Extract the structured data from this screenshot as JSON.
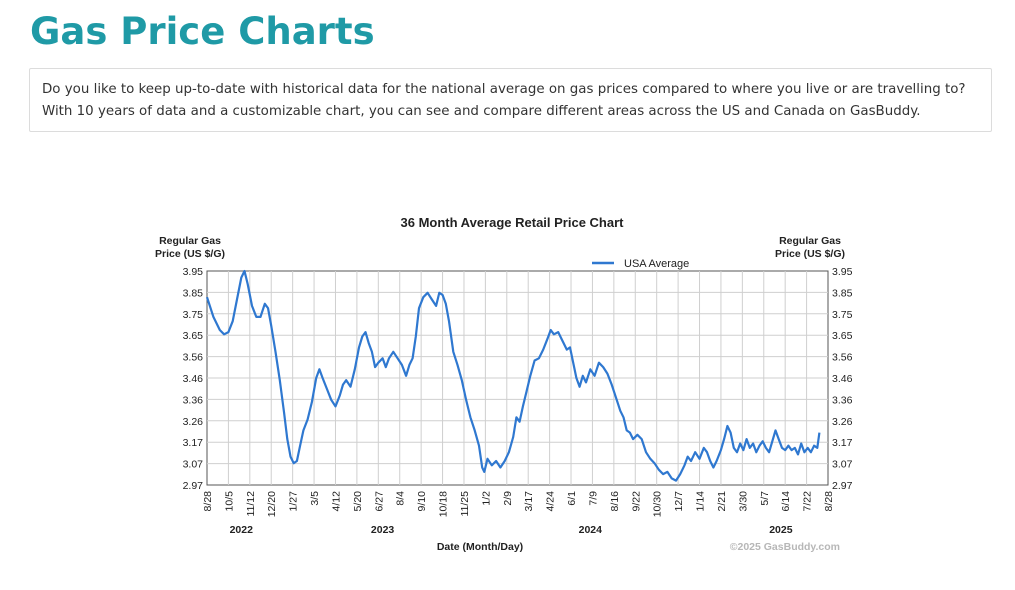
{
  "page": {
    "title": "Gas Price Charts",
    "intro": "Do you like to keep up-to-date with historical data for the national average on gas prices compared to where you live or are travelling to? With 10 years of data and a customizable chart, you can see and compare different areas across the US and Canada on GasBuddy."
  },
  "chart_data": {
    "type": "line",
    "title": "36 Month Average Retail Price Chart",
    "ylabel_left": [
      "Regular Gas",
      "Price (US $/G)"
    ],
    "ylabel_right": [
      "Regular Gas",
      "Price (US $/G)"
    ],
    "xlabel": "Date (Month/Day)",
    "copyright": "©2025 GasBuddy.com",
    "legend": "top-center",
    "grid": true,
    "ylim": [
      2.97,
      3.95
    ],
    "yticks": [
      "3.95",
      "3.85",
      "3.75",
      "3.65",
      "3.56",
      "3.46",
      "3.36",
      "3.26",
      "3.17",
      "3.07",
      "2.97"
    ],
    "xticks": [
      "8/28",
      "10/5",
      "11/12",
      "12/20",
      "1/27",
      "3/5",
      "4/12",
      "5/20",
      "6/27",
      "8/4",
      "9/10",
      "10/18",
      "11/25",
      "1/2",
      "2/9",
      "3/17",
      "4/24",
      "6/1",
      "7/9",
      "8/16",
      "9/22",
      "10/30",
      "12/7",
      "1/14",
      "2/21",
      "3/30",
      "5/7",
      "6/14",
      "7/22",
      "8/28"
    ],
    "years": [
      {
        "label": "2022",
        "at": 1.6
      },
      {
        "label": "2023",
        "at": 8.2
      },
      {
        "label": "2024",
        "at": 17.9
      },
      {
        "label": "2025",
        "at": 26.8
      }
    ],
    "series": [
      {
        "name": "USA Average",
        "color": "#2f78d0",
        "points": [
          [
            0.0,
            3.83
          ],
          [
            0.3,
            3.74
          ],
          [
            0.6,
            3.68
          ],
          [
            0.8,
            3.66
          ],
          [
            1.0,
            3.67
          ],
          [
            1.2,
            3.72
          ],
          [
            1.4,
            3.82
          ],
          [
            1.6,
            3.92
          ],
          [
            1.75,
            3.95
          ],
          [
            1.9,
            3.89
          ],
          [
            2.1,
            3.79
          ],
          [
            2.3,
            3.74
          ],
          [
            2.5,
            3.74
          ],
          [
            2.7,
            3.8
          ],
          [
            2.85,
            3.78
          ],
          [
            3.0,
            3.7
          ],
          [
            3.2,
            3.58
          ],
          [
            3.4,
            3.45
          ],
          [
            3.6,
            3.3
          ],
          [
            3.75,
            3.18
          ],
          [
            3.9,
            3.1
          ],
          [
            4.05,
            3.07
          ],
          [
            4.2,
            3.08
          ],
          [
            4.35,
            3.15
          ],
          [
            4.5,
            3.22
          ],
          [
            4.7,
            3.27
          ],
          [
            4.9,
            3.35
          ],
          [
            5.1,
            3.46
          ],
          [
            5.25,
            3.5
          ],
          [
            5.4,
            3.46
          ],
          [
            5.6,
            3.41
          ],
          [
            5.8,
            3.36
          ],
          [
            6.0,
            3.33
          ],
          [
            6.2,
            3.38
          ],
          [
            6.35,
            3.43
          ],
          [
            6.5,
            3.45
          ],
          [
            6.7,
            3.42
          ],
          [
            6.9,
            3.5
          ],
          [
            7.1,
            3.6
          ],
          [
            7.25,
            3.65
          ],
          [
            7.4,
            3.67
          ],
          [
            7.55,
            3.62
          ],
          [
            7.7,
            3.58
          ],
          [
            7.85,
            3.51
          ],
          [
            8.0,
            3.53
          ],
          [
            8.2,
            3.55
          ],
          [
            8.35,
            3.51
          ],
          [
            8.5,
            3.55
          ],
          [
            8.7,
            3.58
          ],
          [
            8.9,
            3.55
          ],
          [
            9.1,
            3.52
          ],
          [
            9.3,
            3.47
          ],
          [
            9.45,
            3.52
          ],
          [
            9.6,
            3.55
          ],
          [
            9.75,
            3.65
          ],
          [
            9.9,
            3.78
          ],
          [
            10.1,
            3.83
          ],
          [
            10.3,
            3.85
          ],
          [
            10.5,
            3.82
          ],
          [
            10.7,
            3.79
          ],
          [
            10.85,
            3.85
          ],
          [
            11.0,
            3.84
          ],
          [
            11.15,
            3.8
          ],
          [
            11.3,
            3.72
          ],
          [
            11.5,
            3.58
          ],
          [
            11.7,
            3.52
          ],
          [
            11.9,
            3.45
          ],
          [
            12.1,
            3.36
          ],
          [
            12.3,
            3.28
          ],
          [
            12.5,
            3.22
          ],
          [
            12.7,
            3.15
          ],
          [
            12.85,
            3.05
          ],
          [
            12.95,
            3.03
          ],
          [
            13.1,
            3.09
          ],
          [
            13.3,
            3.06
          ],
          [
            13.5,
            3.08
          ],
          [
            13.7,
            3.05
          ],
          [
            13.9,
            3.08
          ],
          [
            14.1,
            3.12
          ],
          [
            14.3,
            3.19
          ],
          [
            14.45,
            3.28
          ],
          [
            14.6,
            3.26
          ],
          [
            14.75,
            3.33
          ],
          [
            14.9,
            3.39
          ],
          [
            15.1,
            3.47
          ],
          [
            15.3,
            3.54
          ],
          [
            15.5,
            3.55
          ],
          [
            15.7,
            3.59
          ],
          [
            15.9,
            3.64
          ],
          [
            16.05,
            3.68
          ],
          [
            16.2,
            3.66
          ],
          [
            16.4,
            3.67
          ],
          [
            16.6,
            3.63
          ],
          [
            16.8,
            3.59
          ],
          [
            16.95,
            3.6
          ],
          [
            17.1,
            3.53
          ],
          [
            17.25,
            3.46
          ],
          [
            17.4,
            3.42
          ],
          [
            17.55,
            3.47
          ],
          [
            17.7,
            3.44
          ],
          [
            17.9,
            3.5
          ],
          [
            18.1,
            3.47
          ],
          [
            18.3,
            3.53
          ],
          [
            18.5,
            3.51
          ],
          [
            18.7,
            3.48
          ],
          [
            18.9,
            3.43
          ],
          [
            19.1,
            3.37
          ],
          [
            19.3,
            3.31
          ],
          [
            19.45,
            3.28
          ],
          [
            19.6,
            3.22
          ],
          [
            19.75,
            3.21
          ],
          [
            19.9,
            3.18
          ],
          [
            20.1,
            3.2
          ],
          [
            20.3,
            3.18
          ],
          [
            20.5,
            3.12
          ],
          [
            20.7,
            3.09
          ],
          [
            20.9,
            3.07
          ],
          [
            21.1,
            3.04
          ],
          [
            21.3,
            3.02
          ],
          [
            21.5,
            3.03
          ],
          [
            21.7,
            3.0
          ],
          [
            21.9,
            2.99
          ],
          [
            22.1,
            3.02
          ],
          [
            22.3,
            3.06
          ],
          [
            22.45,
            3.1
          ],
          [
            22.6,
            3.08
          ],
          [
            22.8,
            3.12
          ],
          [
            23.0,
            3.09
          ],
          [
            23.2,
            3.14
          ],
          [
            23.35,
            3.12
          ],
          [
            23.5,
            3.08
          ],
          [
            23.65,
            3.05
          ],
          [
            23.8,
            3.08
          ],
          [
            24.0,
            3.13
          ],
          [
            24.15,
            3.18
          ],
          [
            24.3,
            3.24
          ],
          [
            24.45,
            3.21
          ],
          [
            24.6,
            3.14
          ],
          [
            24.75,
            3.12
          ],
          [
            24.9,
            3.16
          ],
          [
            25.05,
            3.13
          ],
          [
            25.2,
            3.18
          ],
          [
            25.35,
            3.14
          ],
          [
            25.5,
            3.16
          ],
          [
            25.65,
            3.12
          ],
          [
            25.8,
            3.15
          ],
          [
            25.95,
            3.17
          ],
          [
            26.1,
            3.14
          ],
          [
            26.25,
            3.12
          ],
          [
            26.4,
            3.17
          ],
          [
            26.55,
            3.22
          ],
          [
            26.7,
            3.18
          ],
          [
            26.85,
            3.14
          ],
          [
            27.0,
            3.13
          ],
          [
            27.15,
            3.15
          ],
          [
            27.3,
            3.13
          ],
          [
            27.45,
            3.14
          ],
          [
            27.6,
            3.11
          ],
          [
            27.75,
            3.16
          ],
          [
            27.9,
            3.12
          ],
          [
            28.05,
            3.14
          ],
          [
            28.2,
            3.12
          ],
          [
            28.35,
            3.15
          ],
          [
            28.5,
            3.14
          ],
          [
            28.6,
            3.21
          ]
        ]
      }
    ]
  }
}
